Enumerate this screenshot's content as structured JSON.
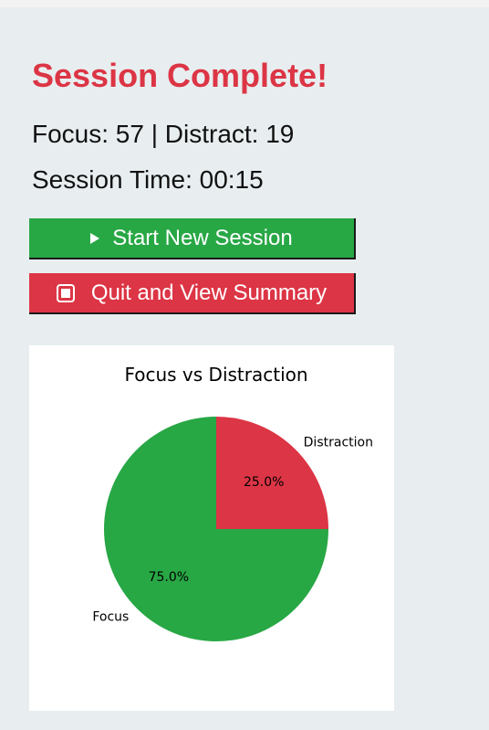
{
  "session": {
    "title": "Session Complete!",
    "stats_text": "Focus: 57 | Distract: 19",
    "time_text": "Session Time: 00:15"
  },
  "buttons": {
    "start_label": "Start New Session",
    "quit_label": "Quit and View Summary"
  },
  "colors": {
    "focus": "#28a745",
    "distraction": "#dc3545",
    "background": "#e8eef0"
  },
  "chart_data": {
    "type": "pie",
    "title": "Focus vs Distraction",
    "categories": [
      "Focus",
      "Distraction"
    ],
    "values": [
      75.0,
      25.0
    ],
    "value_labels": [
      "75.0%",
      "25.0%"
    ],
    "colors": [
      "#28a745",
      "#dc3545"
    ]
  }
}
